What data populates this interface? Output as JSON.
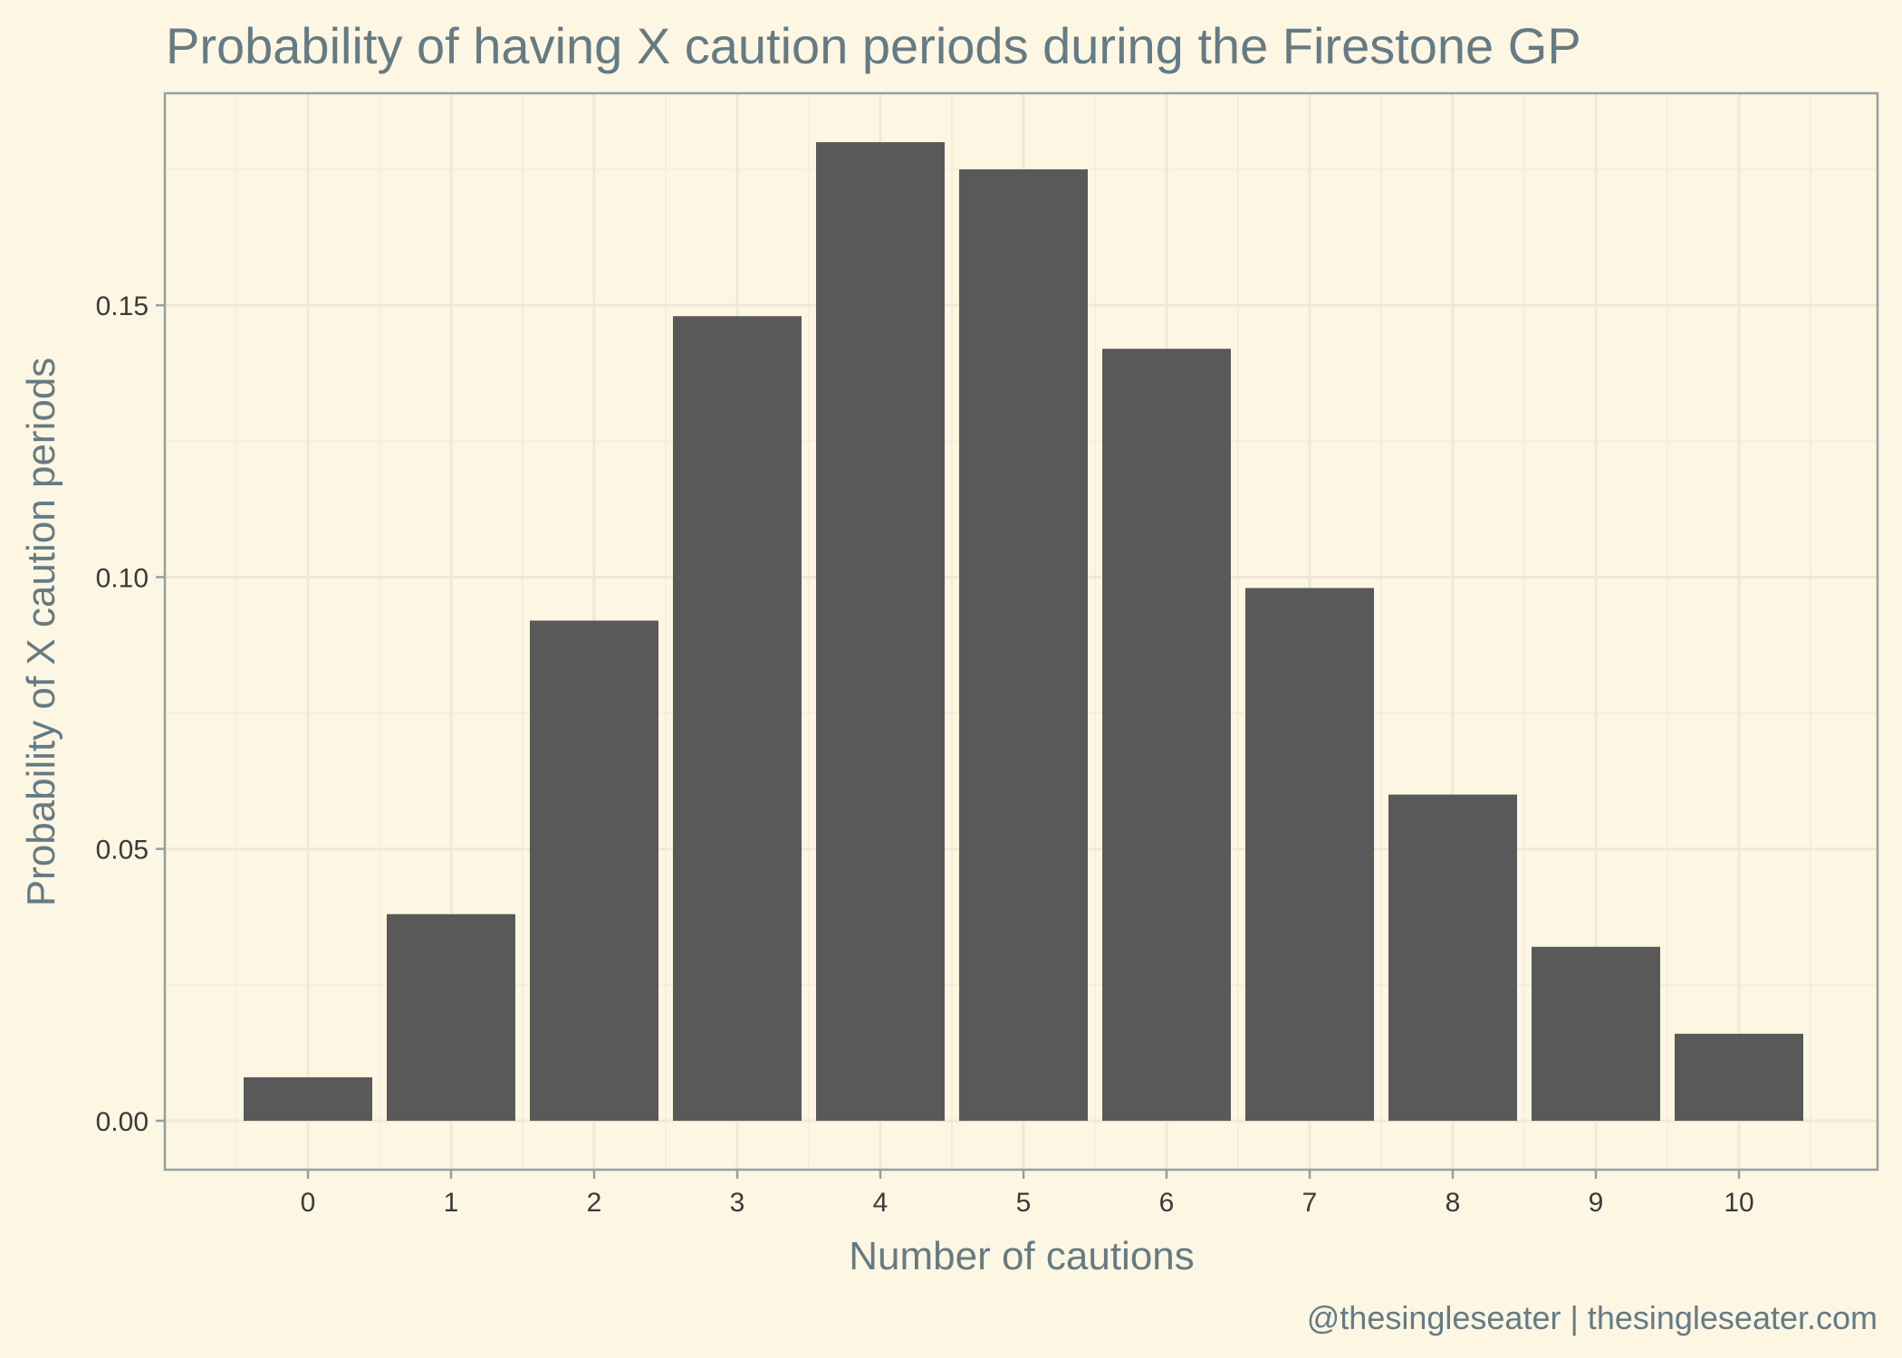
{
  "colors": {
    "background": "#fdf6e3",
    "bar": "#595959",
    "text_accent": "#657b83"
  },
  "chart_data": {
    "type": "bar",
    "title": "Probability of having X caution periods during the Firestone GP",
    "xlabel": "Number of cautions",
    "ylabel": "Probability of X caution periods",
    "caption": "@thesingleseater | thesingleseater.com",
    "categories": [
      "0",
      "1",
      "2",
      "3",
      "4",
      "5",
      "6",
      "7",
      "8",
      "9",
      "10"
    ],
    "values": [
      0.008,
      0.038,
      0.092,
      0.148,
      0.18,
      0.175,
      0.142,
      0.098,
      0.06,
      0.032,
      0.016
    ],
    "ylim": [
      -0.009,
      0.189
    ],
    "yticks": [
      0,
      0.05,
      0.1,
      0.15
    ],
    "ytick_labels": [
      "0.00",
      "0.05",
      "0.10",
      "0.15"
    ],
    "grid": true,
    "legend": "none"
  }
}
